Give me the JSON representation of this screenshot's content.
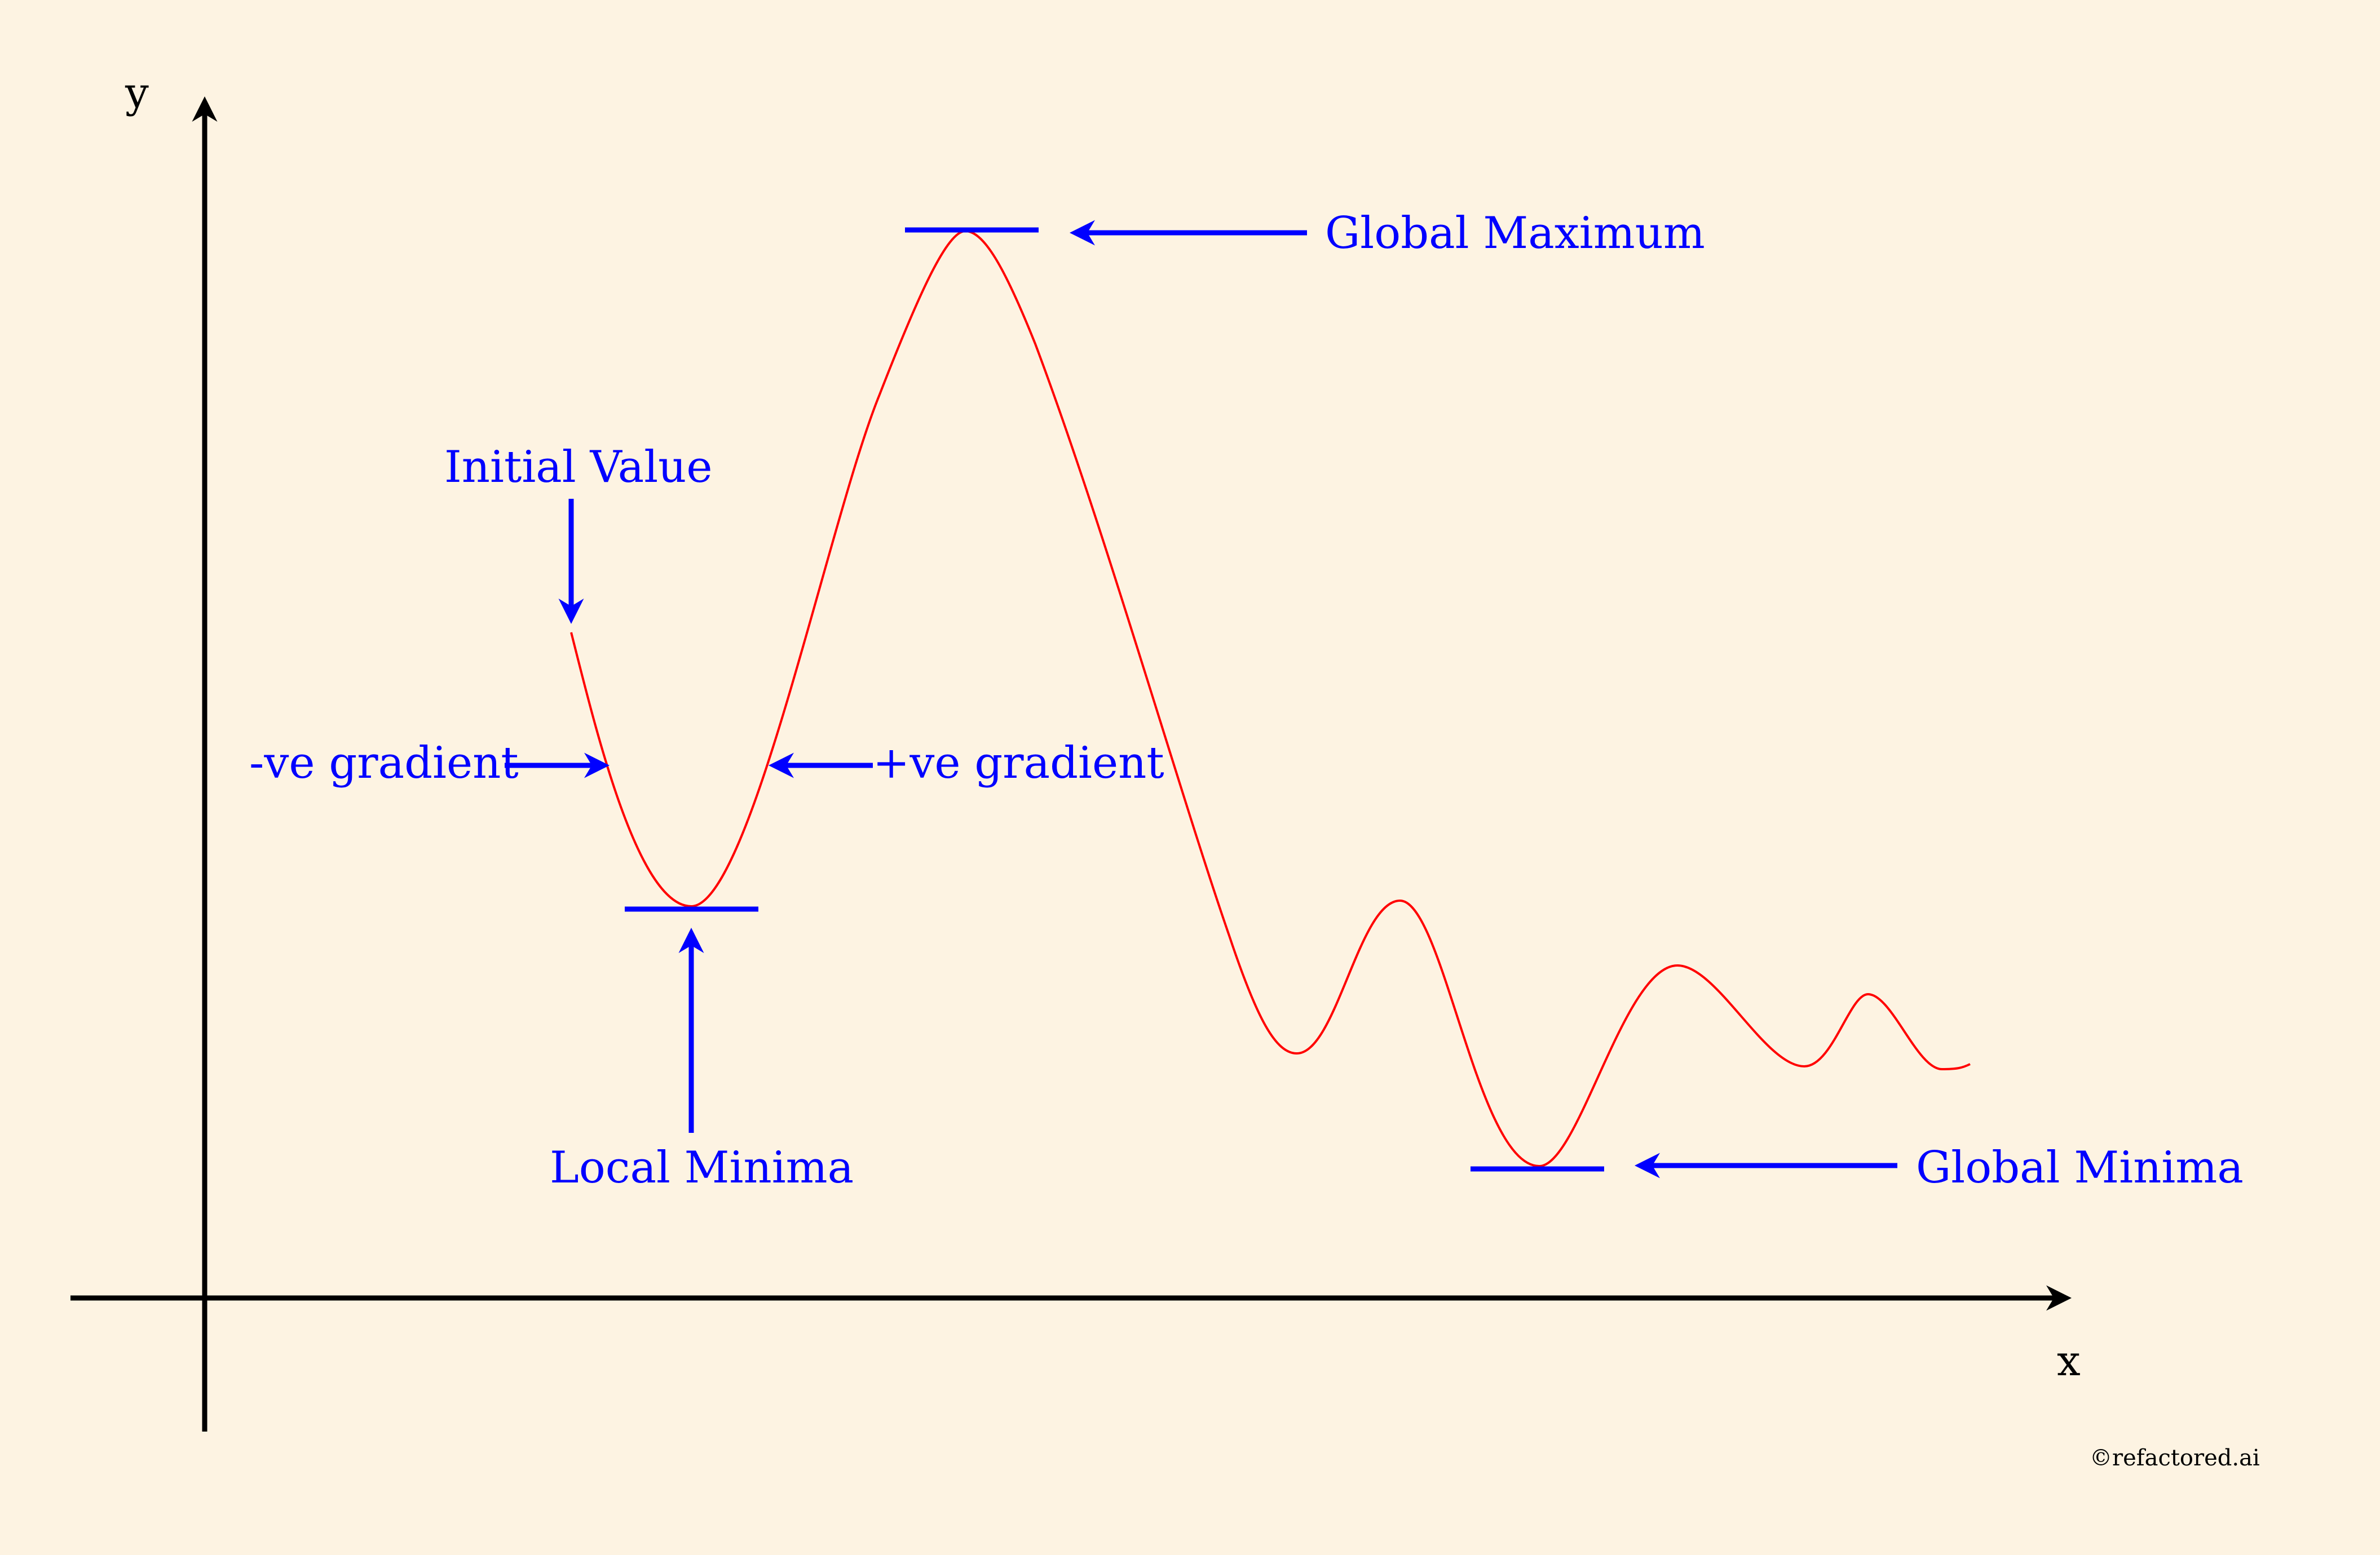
{
  "axes": {
    "x_label": "x",
    "y_label": "y"
  },
  "annotations": {
    "global_maximum": "Global Maximum",
    "initial_value": "Initial Value",
    "negative_gradient": "-ve gradient",
    "positive_gradient": "+ve gradient",
    "local_minima": "Local Minima",
    "global_minima": "Global Minima"
  },
  "credit": "©refactored.ai",
  "colors": {
    "background": "#fdf3e2",
    "curve": "#ff0000",
    "annotation": "#0000ff",
    "axis": "#000000"
  }
}
